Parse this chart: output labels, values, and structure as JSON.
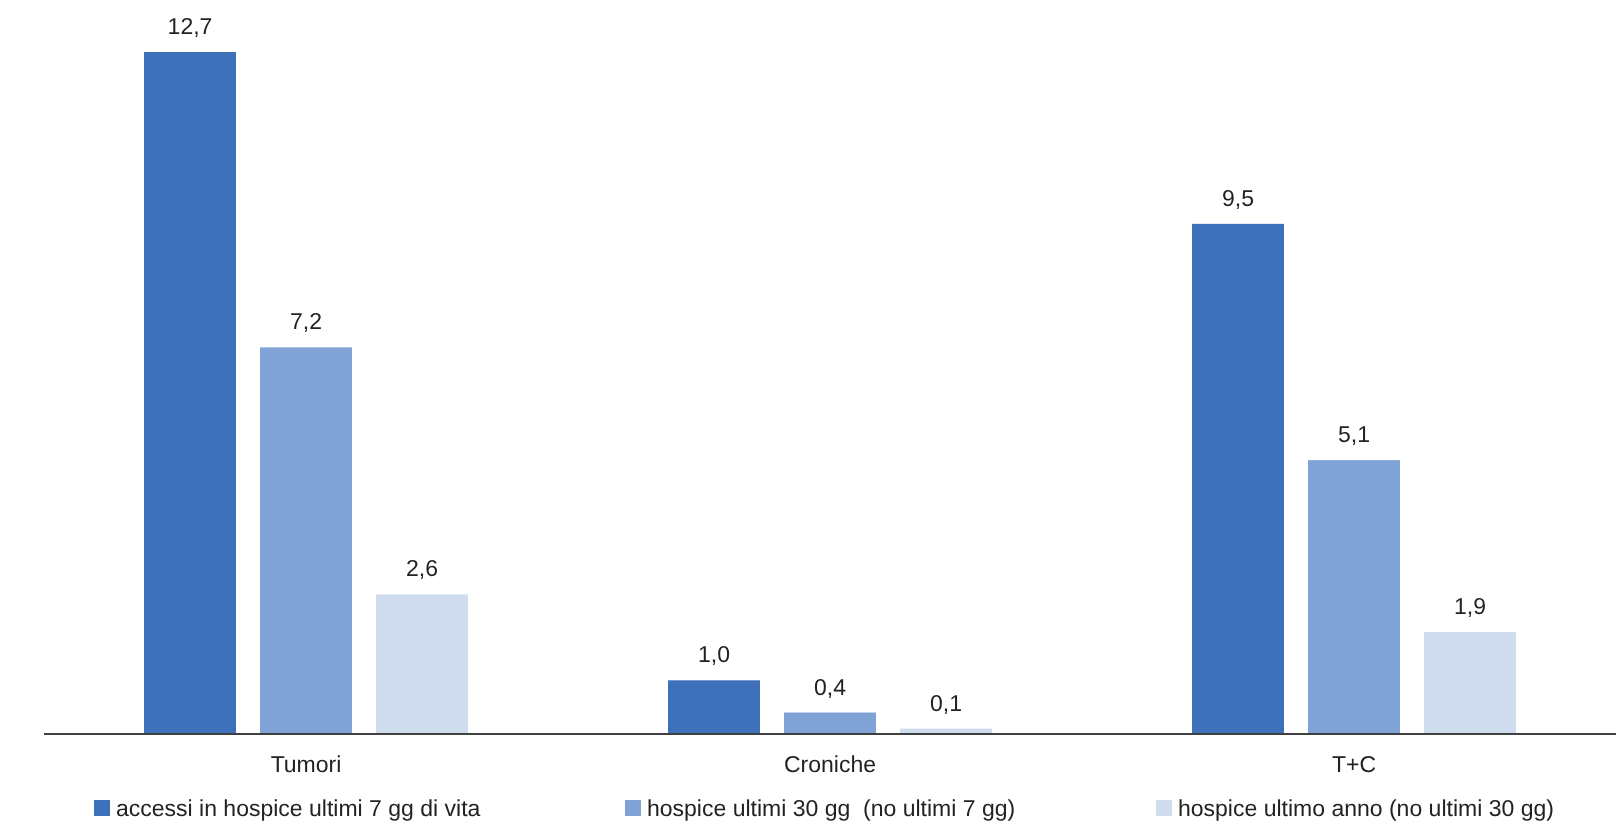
{
  "chart_data": {
    "type": "bar",
    "categories": [
      "Tumori",
      "Croniche",
      "T+C"
    ],
    "series": [
      {
        "name": "accessi in hospice ultimi 7 gg di vita",
        "color": "#3e71b9",
        "values": [
          12.7,
          1.0,
          9.5
        ],
        "value_labels": [
          "12,7",
          "1,0",
          "9,5"
        ]
      },
      {
        "name": "hospice ultimi 30 gg  (no ultimi 7 gg)",
        "color": "#7fa3d5",
        "values": [
          7.2,
          0.4,
          5.1
        ],
        "value_labels": [
          "7,2",
          "0,4",
          "5,1"
        ]
      },
      {
        "name": "hospice ultimo anno (no ultimi 30 gg)",
        "color": "#cfdcee",
        "values": [
          2.6,
          0.1,
          1.9
        ],
        "value_labels": [
          "2,6",
          "0,1",
          "1,9"
        ]
      }
    ],
    "tick_labels": "x",
    "legend": "bottom"
  }
}
